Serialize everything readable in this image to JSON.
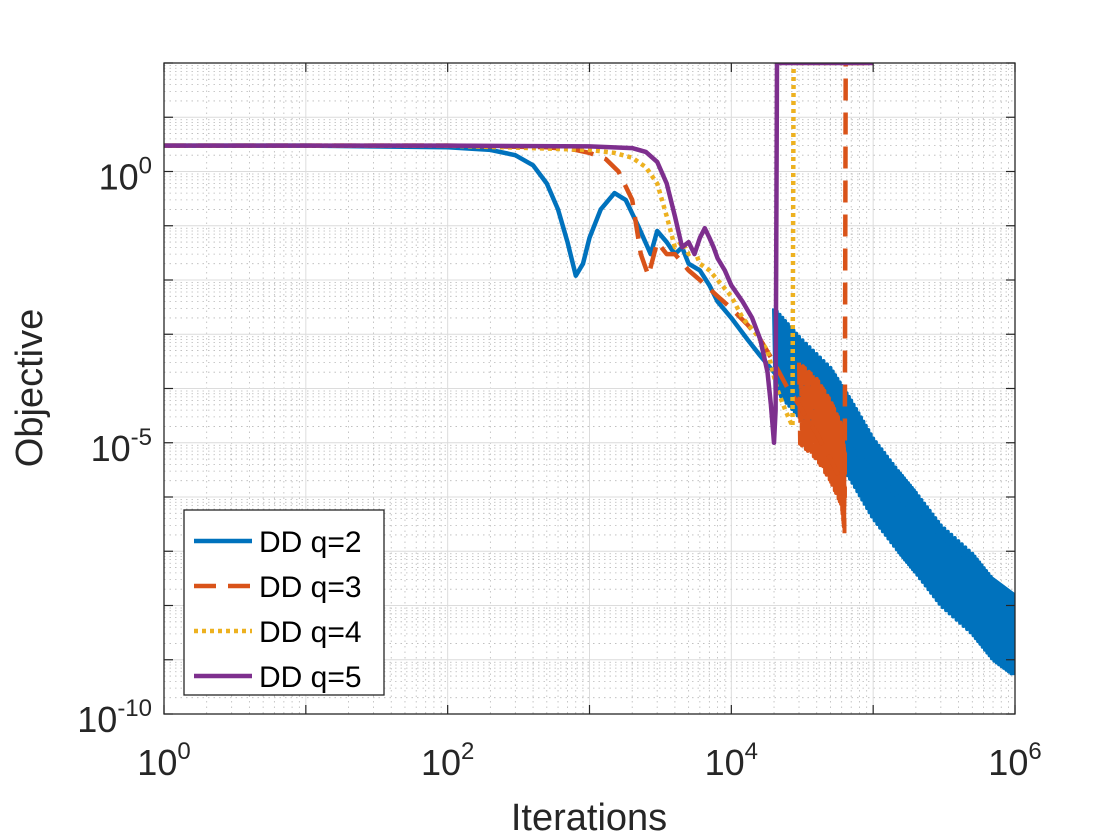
{
  "chart_data": {
    "type": "line",
    "title": "",
    "xlabel": "Iterations",
    "ylabel": "Objective",
    "xscale": "log",
    "yscale": "log",
    "xlim": [
      1,
      1000000
    ],
    "ylim": [
      1e-10,
      100.0
    ],
    "grid": true,
    "legend_position": "bottom-left",
    "x_ticks": [
      {
        "value": 1,
        "base": "10",
        "exp": "0"
      },
      {
        "value": 100,
        "base": "10",
        "exp": "2"
      },
      {
        "value": 10000,
        "base": "10",
        "exp": "4"
      },
      {
        "value": 1000000,
        "base": "10",
        "exp": "6"
      }
    ],
    "y_ticks": [
      {
        "value": 1,
        "base": "10",
        "exp": "0"
      },
      {
        "value": 1e-05,
        "base": "10",
        "exp": "-5"
      },
      {
        "value": 1e-10,
        "base": "10",
        "exp": "-10"
      }
    ],
    "series": [
      {
        "name": "DD q=2",
        "color": "#0072BD",
        "style": "solid",
        "x": [
          1,
          10,
          100,
          200,
          300,
          400,
          500,
          600,
          700,
          800,
          900,
          1000,
          1200,
          1500,
          1800,
          2200,
          2700,
          3000,
          3500,
          4000,
          4500,
          5000,
          6000,
          7000,
          8000,
          10000,
          13000,
          16000,
          20000,
          25000,
          30000,
          40000,
          50000,
          70000,
          100000,
          150000,
          200000,
          300000,
          500000,
          700000,
          1000000
        ],
        "y": [
          3,
          3,
          2.8,
          2.5,
          2.0,
          1.3,
          0.6,
          0.2,
          0.05,
          0.012,
          0.02,
          0.06,
          0.2,
          0.4,
          0.3,
          0.1,
          0.03,
          0.08,
          0.05,
          0.03,
          0.04,
          0.02,
          0.015,
          0.008,
          0.004,
          0.002,
          0.0008,
          0.0004,
          0.0002,
          0.0001,
          6e-05,
          3e-05,
          2e-05,
          8e-06,
          3e-06,
          1e-06,
          5e-07,
          2e-07,
          6e-08,
          3e-08,
          1.5e-08
        ],
        "lower_envelope": {
          "x": [
            20000,
            30000,
            50000,
            70000,
            100000,
            150000,
            200000,
            300000,
            500000,
            700000,
            1000000
          ],
          "y": [
            0.0001,
            3e-05,
            8e-06,
            2e-06,
            4e-07,
            1e-07,
            4e-08,
            1e-08,
            3e-09,
            1e-09,
            5e-10
          ]
        }
      },
      {
        "name": "DD q=3",
        "color": "#D95319",
        "style": "dashed",
        "x": [
          1,
          100,
          500,
          800,
          1000,
          1300,
          1600,
          2000,
          2300,
          2600,
          3000,
          3500,
          4000,
          5000,
          6000,
          8000,
          10000,
          13000,
          16000,
          20000,
          25000,
          30000,
          35000,
          40000,
          45000,
          50000,
          55000,
          60000,
          63000,
          64000,
          100000
        ],
        "y": [
          3,
          3,
          2.8,
          2.5,
          2.2,
          1.7,
          1.0,
          0.3,
          0.03,
          0.012,
          0.05,
          0.03,
          0.03,
          0.015,
          0.01,
          0.005,
          0.003,
          0.0015,
          0.0008,
          0.0003,
          0.0001,
          5e-05,
          2.5e-05,
          1.5e-05,
          8e-06,
          5e-06,
          3e-06,
          2e-06,
          1e-06,
          100,
          100
        ],
        "lower_envelope": {
          "x": [
            30000,
            40000,
            50000,
            60000,
            63000
          ],
          "y": [
            1e-05,
            5e-06,
            2e-06,
            7e-07,
            2e-07
          ]
        }
      },
      {
        "name": "DD q=4",
        "color": "#EDB120",
        "style": "dotted",
        "x": [
          1,
          100,
          1000,
          1500,
          2000,
          2500,
          3000,
          3500,
          4000,
          4500,
          5000,
          5500,
          6000,
          7000,
          8000,
          10000,
          12000,
          15000,
          18000,
          21000,
          24000,
          27000,
          27500,
          28000,
          100000
        ],
        "y": [
          3,
          3,
          2.5,
          2.2,
          1.8,
          1.2,
          0.6,
          0.15,
          0.04,
          0.05,
          0.03,
          0.035,
          0.02,
          0.015,
          0.01,
          0.005,
          0.002,
          0.001,
          0.0005,
          0.0001,
          4e-05,
          2e-05,
          100,
          100,
          100
        ]
      },
      {
        "name": "DD q=5",
        "color": "#7E2F8E",
        "style": "solid",
        "x": [
          1,
          100,
          1000,
          2000,
          2500,
          3000,
          3500,
          4000,
          4500,
          5000,
          5500,
          6000,
          6500,
          7000,
          7500,
          8000,
          9000,
          10000,
          12000,
          14000,
          16000,
          18000,
          19000,
          20000,
          20500,
          21000,
          100000
        ],
        "y": [
          3,
          3,
          2.9,
          2.7,
          2.3,
          1.5,
          0.6,
          0.15,
          0.04,
          0.05,
          0.03,
          0.06,
          0.09,
          0.06,
          0.04,
          0.025,
          0.015,
          0.008,
          0.004,
          0.002,
          0.0008,
          0.0002,
          5e-05,
          1e-05,
          4e-05,
          100,
          100
        ]
      }
    ]
  }
}
